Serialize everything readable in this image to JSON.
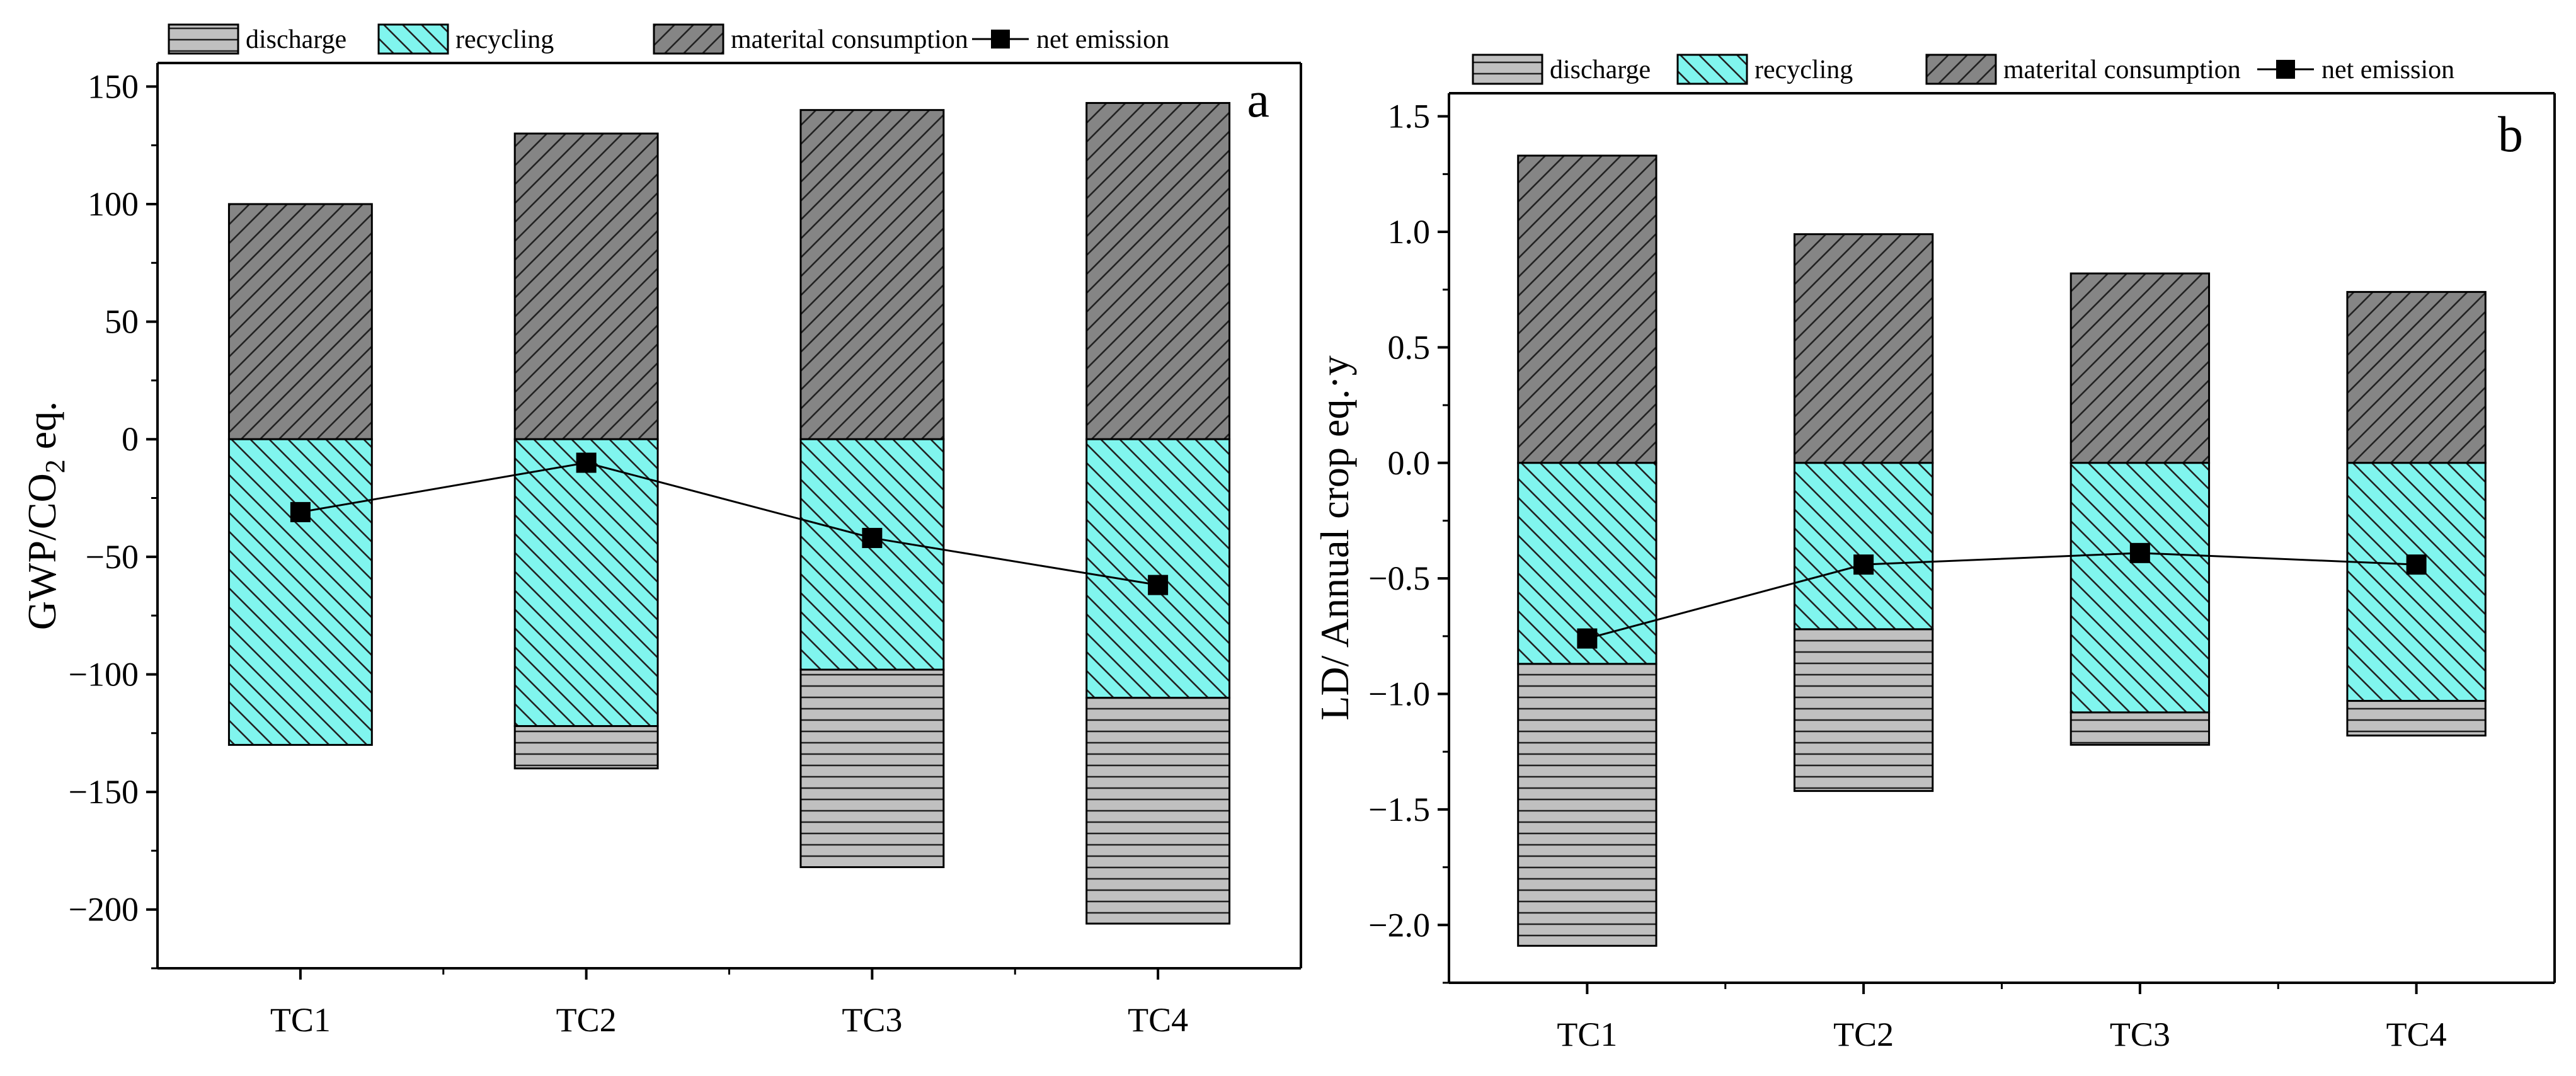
{
  "chart_data": [
    {
      "type": "bar",
      "panel_label": "a",
      "ylabel": "GWP/CO",
      "ylabel_sub": "2",
      "ylabel_suffix": " eq.",
      "ylim": [
        -225,
        160
      ],
      "yticks": [
        150,
        100,
        50,
        0,
        -50,
        -100,
        -150,
        -200
      ],
      "ytick_labels": [
        "150",
        "100",
        "50",
        "0",
        "−50",
        "−100",
        "−150",
        "−200"
      ],
      "categories": [
        "TC1",
        "TC2",
        "TC3",
        "TC4"
      ],
      "series": [
        {
          "name": "discharge",
          "values": [
            0,
            -18,
            -84,
            -96
          ]
        },
        {
          "name": "recycling",
          "values": [
            -130,
            -122,
            -98,
            -110
          ]
        },
        {
          "name": "materital consumption",
          "values": [
            100,
            130,
            140,
            143
          ]
        },
        {
          "name": "net emission",
          "values": [
            -31,
            -10,
            -42,
            -62
          ]
        }
      ],
      "legend": {
        "placement": "top",
        "items": [
          "discharge",
          "recycling",
          "materital consumption",
          "net emission"
        ]
      }
    },
    {
      "type": "bar",
      "panel_label": "b",
      "ylabel": "LD/ Annual crop eq.·y",
      "ylim": [
        -2.25,
        1.6
      ],
      "yticks": [
        1.5,
        1.0,
        0.5,
        0.0,
        -0.5,
        -1.0,
        -1.5,
        -2.0
      ],
      "ytick_labels": [
        "1.5",
        "1.0",
        "0.5",
        "0.0",
        "−0.5",
        "−1.0",
        "−1.5",
        "−2.0"
      ],
      "categories": [
        "TC1",
        "TC2",
        "TC3",
        "TC4"
      ],
      "series": [
        {
          "name": "discharge",
          "values": [
            -1.22,
            -0.7,
            -0.14,
            -0.15
          ]
        },
        {
          "name": "recycling",
          "values": [
            -0.87,
            -0.72,
            -1.08,
            -1.03
          ]
        },
        {
          "name": "materital consumption",
          "values": [
            1.33,
            0.99,
            0.82,
            0.74
          ]
        },
        {
          "name": "net emission",
          "values": [
            -0.76,
            -0.44,
            -0.39,
            -0.44
          ]
        }
      ],
      "legend": {
        "placement": "top",
        "items": [
          "discharge",
          "recycling",
          "materital consumption",
          "net emission"
        ]
      }
    }
  ],
  "colors": {
    "discharge": "#c0c0c0",
    "recycling": "#80f5ee",
    "consumption": "#858585",
    "line": "#000000"
  }
}
